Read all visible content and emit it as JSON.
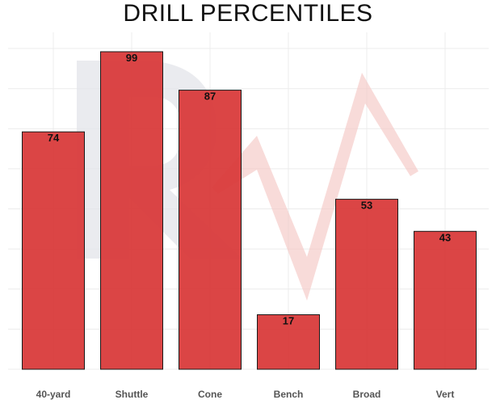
{
  "chart_data": {
    "type": "bar",
    "title": "DRILL PERCENTILES",
    "categories": [
      "40-yard",
      "Shuttle",
      "Cone",
      "Bench",
      "Broad",
      "Vert"
    ],
    "values": [
      74,
      99,
      87,
      17,
      53,
      43
    ],
    "xlabel": "",
    "ylabel": "",
    "ylim": [
      0,
      100
    ],
    "grid": true,
    "legend": "none",
    "bar_color": "#d93b3b",
    "bar_edge_color": "#1a1a1a",
    "data_labels": true
  },
  "watermark": {
    "icon": "rv-logo-watermark"
  }
}
